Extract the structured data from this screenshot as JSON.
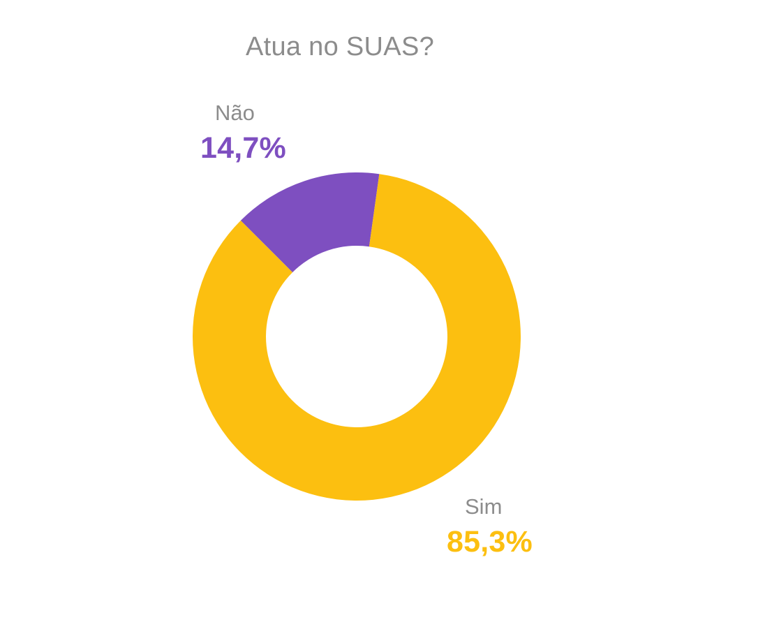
{
  "chart_data": {
    "type": "pie",
    "title": "Atua no SUAS?",
    "donut": true,
    "slices": [
      {
        "label": "Não",
        "value": 14.7,
        "value_label": "14,7%",
        "color": "#7e4fc0"
      },
      {
        "label": "Sim",
        "value": 85.3,
        "value_label": "85,3%",
        "color": "#fcbf10"
      }
    ],
    "legend": "none"
  }
}
